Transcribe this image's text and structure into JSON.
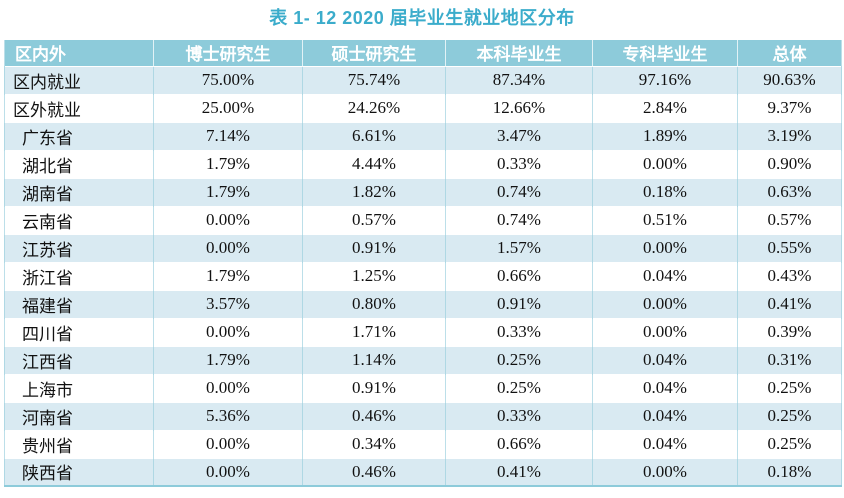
{
  "title": "表 1- 12 2020 届毕业生就业地区分布",
  "colors": {
    "header_bg": "#8DCBDA",
    "header_text": "#FFFFFF",
    "title_color": "#3BACCB",
    "band_bg": "#D9EAF2",
    "border_light": "#BCDFE9",
    "band_border": "#AFD8E4",
    "bottom_border": "#8DCBDA",
    "body_text": "#111111"
  },
  "table": {
    "columns": [
      "区内外",
      "博士研究生",
      "硕士研究生",
      "本科毕业生",
      "专科毕业生",
      "总体"
    ],
    "rows": [
      {
        "label": "区内就业",
        "sub": false,
        "values": [
          "75.00%",
          "75.74%",
          "87.34%",
          "97.16%",
          "90.63%"
        ]
      },
      {
        "label": "区外就业",
        "sub": false,
        "values": [
          "25.00%",
          "24.26%",
          "12.66%",
          "2.84%",
          "9.37%"
        ]
      },
      {
        "label": "广东省",
        "sub": true,
        "values": [
          "7.14%",
          "6.61%",
          "3.47%",
          "1.89%",
          "3.19%"
        ]
      },
      {
        "label": "湖北省",
        "sub": true,
        "values": [
          "1.79%",
          "4.44%",
          "0.33%",
          "0.00%",
          "0.90%"
        ]
      },
      {
        "label": "湖南省",
        "sub": true,
        "values": [
          "1.79%",
          "1.82%",
          "0.74%",
          "0.18%",
          "0.63%"
        ]
      },
      {
        "label": "云南省",
        "sub": true,
        "values": [
          "0.00%",
          "0.57%",
          "0.74%",
          "0.51%",
          "0.57%"
        ]
      },
      {
        "label": "江苏省",
        "sub": true,
        "values": [
          "0.00%",
          "0.91%",
          "1.57%",
          "0.00%",
          "0.55%"
        ]
      },
      {
        "label": "浙江省",
        "sub": true,
        "values": [
          "1.79%",
          "1.25%",
          "0.66%",
          "0.04%",
          "0.43%"
        ]
      },
      {
        "label": "福建省",
        "sub": true,
        "values": [
          "3.57%",
          "0.80%",
          "0.91%",
          "0.00%",
          "0.41%"
        ]
      },
      {
        "label": "四川省",
        "sub": true,
        "values": [
          "0.00%",
          "1.71%",
          "0.33%",
          "0.00%",
          "0.39%"
        ]
      },
      {
        "label": "江西省",
        "sub": true,
        "values": [
          "1.79%",
          "1.14%",
          "0.25%",
          "0.04%",
          "0.31%"
        ]
      },
      {
        "label": "上海市",
        "sub": true,
        "values": [
          "0.00%",
          "0.91%",
          "0.25%",
          "0.04%",
          "0.25%"
        ]
      },
      {
        "label": "河南省",
        "sub": true,
        "values": [
          "5.36%",
          "0.46%",
          "0.33%",
          "0.04%",
          "0.25%"
        ]
      },
      {
        "label": "贵州省",
        "sub": true,
        "values": [
          "0.00%",
          "0.34%",
          "0.66%",
          "0.04%",
          "0.25%"
        ]
      },
      {
        "label": "陕西省",
        "sub": true,
        "values": [
          "0.00%",
          "0.46%",
          "0.41%",
          "0.00%",
          "0.18%"
        ]
      }
    ]
  }
}
